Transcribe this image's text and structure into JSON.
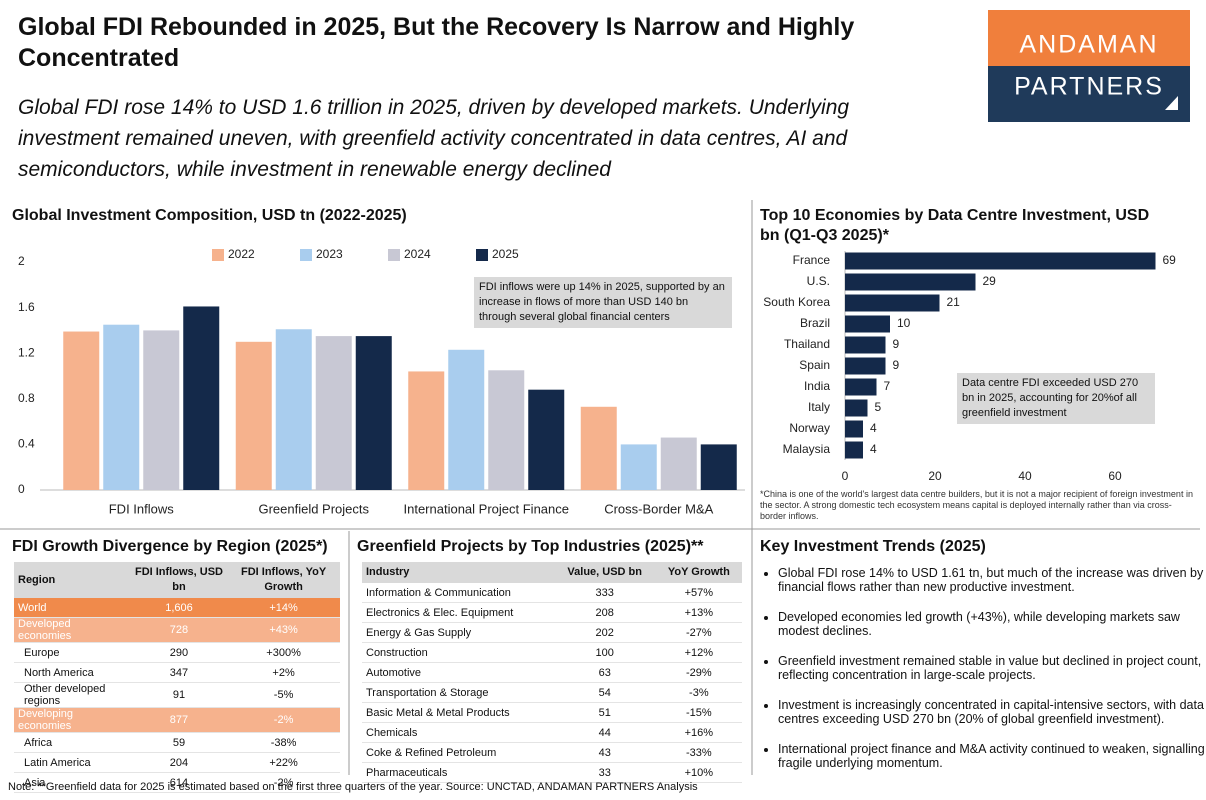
{
  "header": {
    "title": "Global FDI Rebounded in 2025, But the Recovery Is Narrow and Highly Concentrated",
    "subtitle": "Global FDI rose 14% to USD 1.6 trillion in 2025, driven by developed markets. Underlying investment remained uneven, with greenfield activity concentrated in data centres, AI and semiconductors, while investment in renewable energy declined",
    "logo": [
      "ANDAMAN",
      "PARTNERS"
    ]
  },
  "chart_data": [
    {
      "type": "bar",
      "title": "Global Investment Composition, USD tn (2022-2025)",
      "categories": [
        "FDI Inflows",
        "Greenfield Projects",
        "International Project Finance",
        "Cross-Border M&A"
      ],
      "series": [
        {
          "name": "2022",
          "color": "#f6b28d",
          "values": [
            1.39,
            1.3,
            1.04,
            0.73
          ]
        },
        {
          "name": "2023",
          "color": "#a9cdee",
          "values": [
            1.45,
            1.41,
            1.23,
            0.4
          ]
        },
        {
          "name": "2024",
          "color": "#c8c8d4",
          "values": [
            1.4,
            1.35,
            1.05,
            0.46
          ]
        },
        {
          "name": "2025",
          "color": "#14294a",
          "values": [
            1.61,
            1.35,
            0.88,
            0.4
          ]
        }
      ],
      "ylim": [
        0,
        2
      ],
      "yticks": [
        0,
        0.4,
        0.8,
        1.2,
        1.6,
        2
      ],
      "annotation": "FDI inflows were up 14% in 2025, supported by an increase in flows of more than USD 140 bn through several global financial centers"
    },
    {
      "type": "hbar",
      "title": "Top 10 Economies by Data Centre Investment, USD bn (Q1-Q3 2025)*",
      "categories": [
        "France",
        "U.S.",
        "South Korea",
        "Brazil",
        "Thailand",
        "Spain",
        "India",
        "Italy",
        "Norway",
        "Malaysia"
      ],
      "values": [
        69,
        29,
        21,
        10,
        9,
        9,
        7,
        5,
        4,
        4
      ],
      "color": "#14294a",
      "xlim": [
        0,
        70
      ],
      "xticks": [
        0,
        20,
        40,
        60
      ],
      "annotation": "Data centre FDI exceeded USD 270 bn in 2025, accounting for 20%of all greenfield investment",
      "footnote": "*China is one of the world's largest data centre builders, but it is not a major recipient of foreign investment in the sector. A strong domestic tech ecosystem means capital is deployed internally rather than via cross-border inflows."
    }
  ],
  "region_table": {
    "title": "FDI Growth Divergence by Region (2025*)",
    "columns": [
      "Region",
      "FDI Inflows, USD bn",
      "FDI Inflows, YoY Growth"
    ],
    "rows": [
      [
        "World",
        "1,606",
        "+14%"
      ],
      [
        "Developed economies",
        "728",
        "+43%"
      ],
      [
        "Europe",
        "290",
        "+300%"
      ],
      [
        "North America",
        "347",
        "+2%"
      ],
      [
        "Other developed regions",
        "91",
        "-5%"
      ],
      [
        "Developing economies",
        "877",
        "-2%"
      ],
      [
        "Africa",
        "59",
        "-38%"
      ],
      [
        "Latin America",
        "204",
        "+22%"
      ],
      [
        "Asia",
        "614",
        "-2%"
      ]
    ],
    "row_fills": [
      "#f08a4b",
      "#f6b28d",
      null,
      null,
      null,
      "#f6b28d",
      null,
      null,
      null
    ]
  },
  "industry_table": {
    "title": "Greenfield Projects by Top Industries (2025)**",
    "columns": [
      "Industry",
      "Value, USD bn",
      "YoY Growth"
    ],
    "rows": [
      [
        "Information & Communication",
        "333",
        "+57%"
      ],
      [
        "Electronics & Elec. Equipment",
        "208",
        "+13%"
      ],
      [
        "Energy & Gas Supply",
        "202",
        "-27%"
      ],
      [
        "Construction",
        "100",
        "+12%"
      ],
      [
        "Automotive",
        "63",
        "-29%"
      ],
      [
        "Transportation & Storage",
        "54",
        "-3%"
      ],
      [
        "Basic Metal & Metal Products",
        "51",
        "-15%"
      ],
      [
        "Chemicals",
        "44",
        "+16%"
      ],
      [
        "Coke & Refined Petroleum",
        "43",
        "-33%"
      ],
      [
        "Pharmaceuticals",
        "33",
        "+10%"
      ]
    ]
  },
  "trends": {
    "title": "Key Investment Trends (2025)",
    "items": [
      "Global FDI rose 14% to USD 1.61 tn, but much of the increase was driven by financial flows rather than new productive investment.",
      "Developed economies led growth (+43%), while developing markets saw modest declines.",
      "Greenfield investment remained stable in value but declined in project count, reflecting concentration in large-scale projects.",
      "Investment is increasingly concentrated in capital-intensive sectors, with data centres exceeding USD 270 bn (20% of global greenfield investment).",
      "International project finance and M&A activity continued to weaken, signalling fragile underlying momentum."
    ]
  },
  "note": "Note: **Greenfield data for 2025 is estimated based on the first three quarters of the year. Source: UNCTAD, ANDAMAN PARTNERS Analysis"
}
